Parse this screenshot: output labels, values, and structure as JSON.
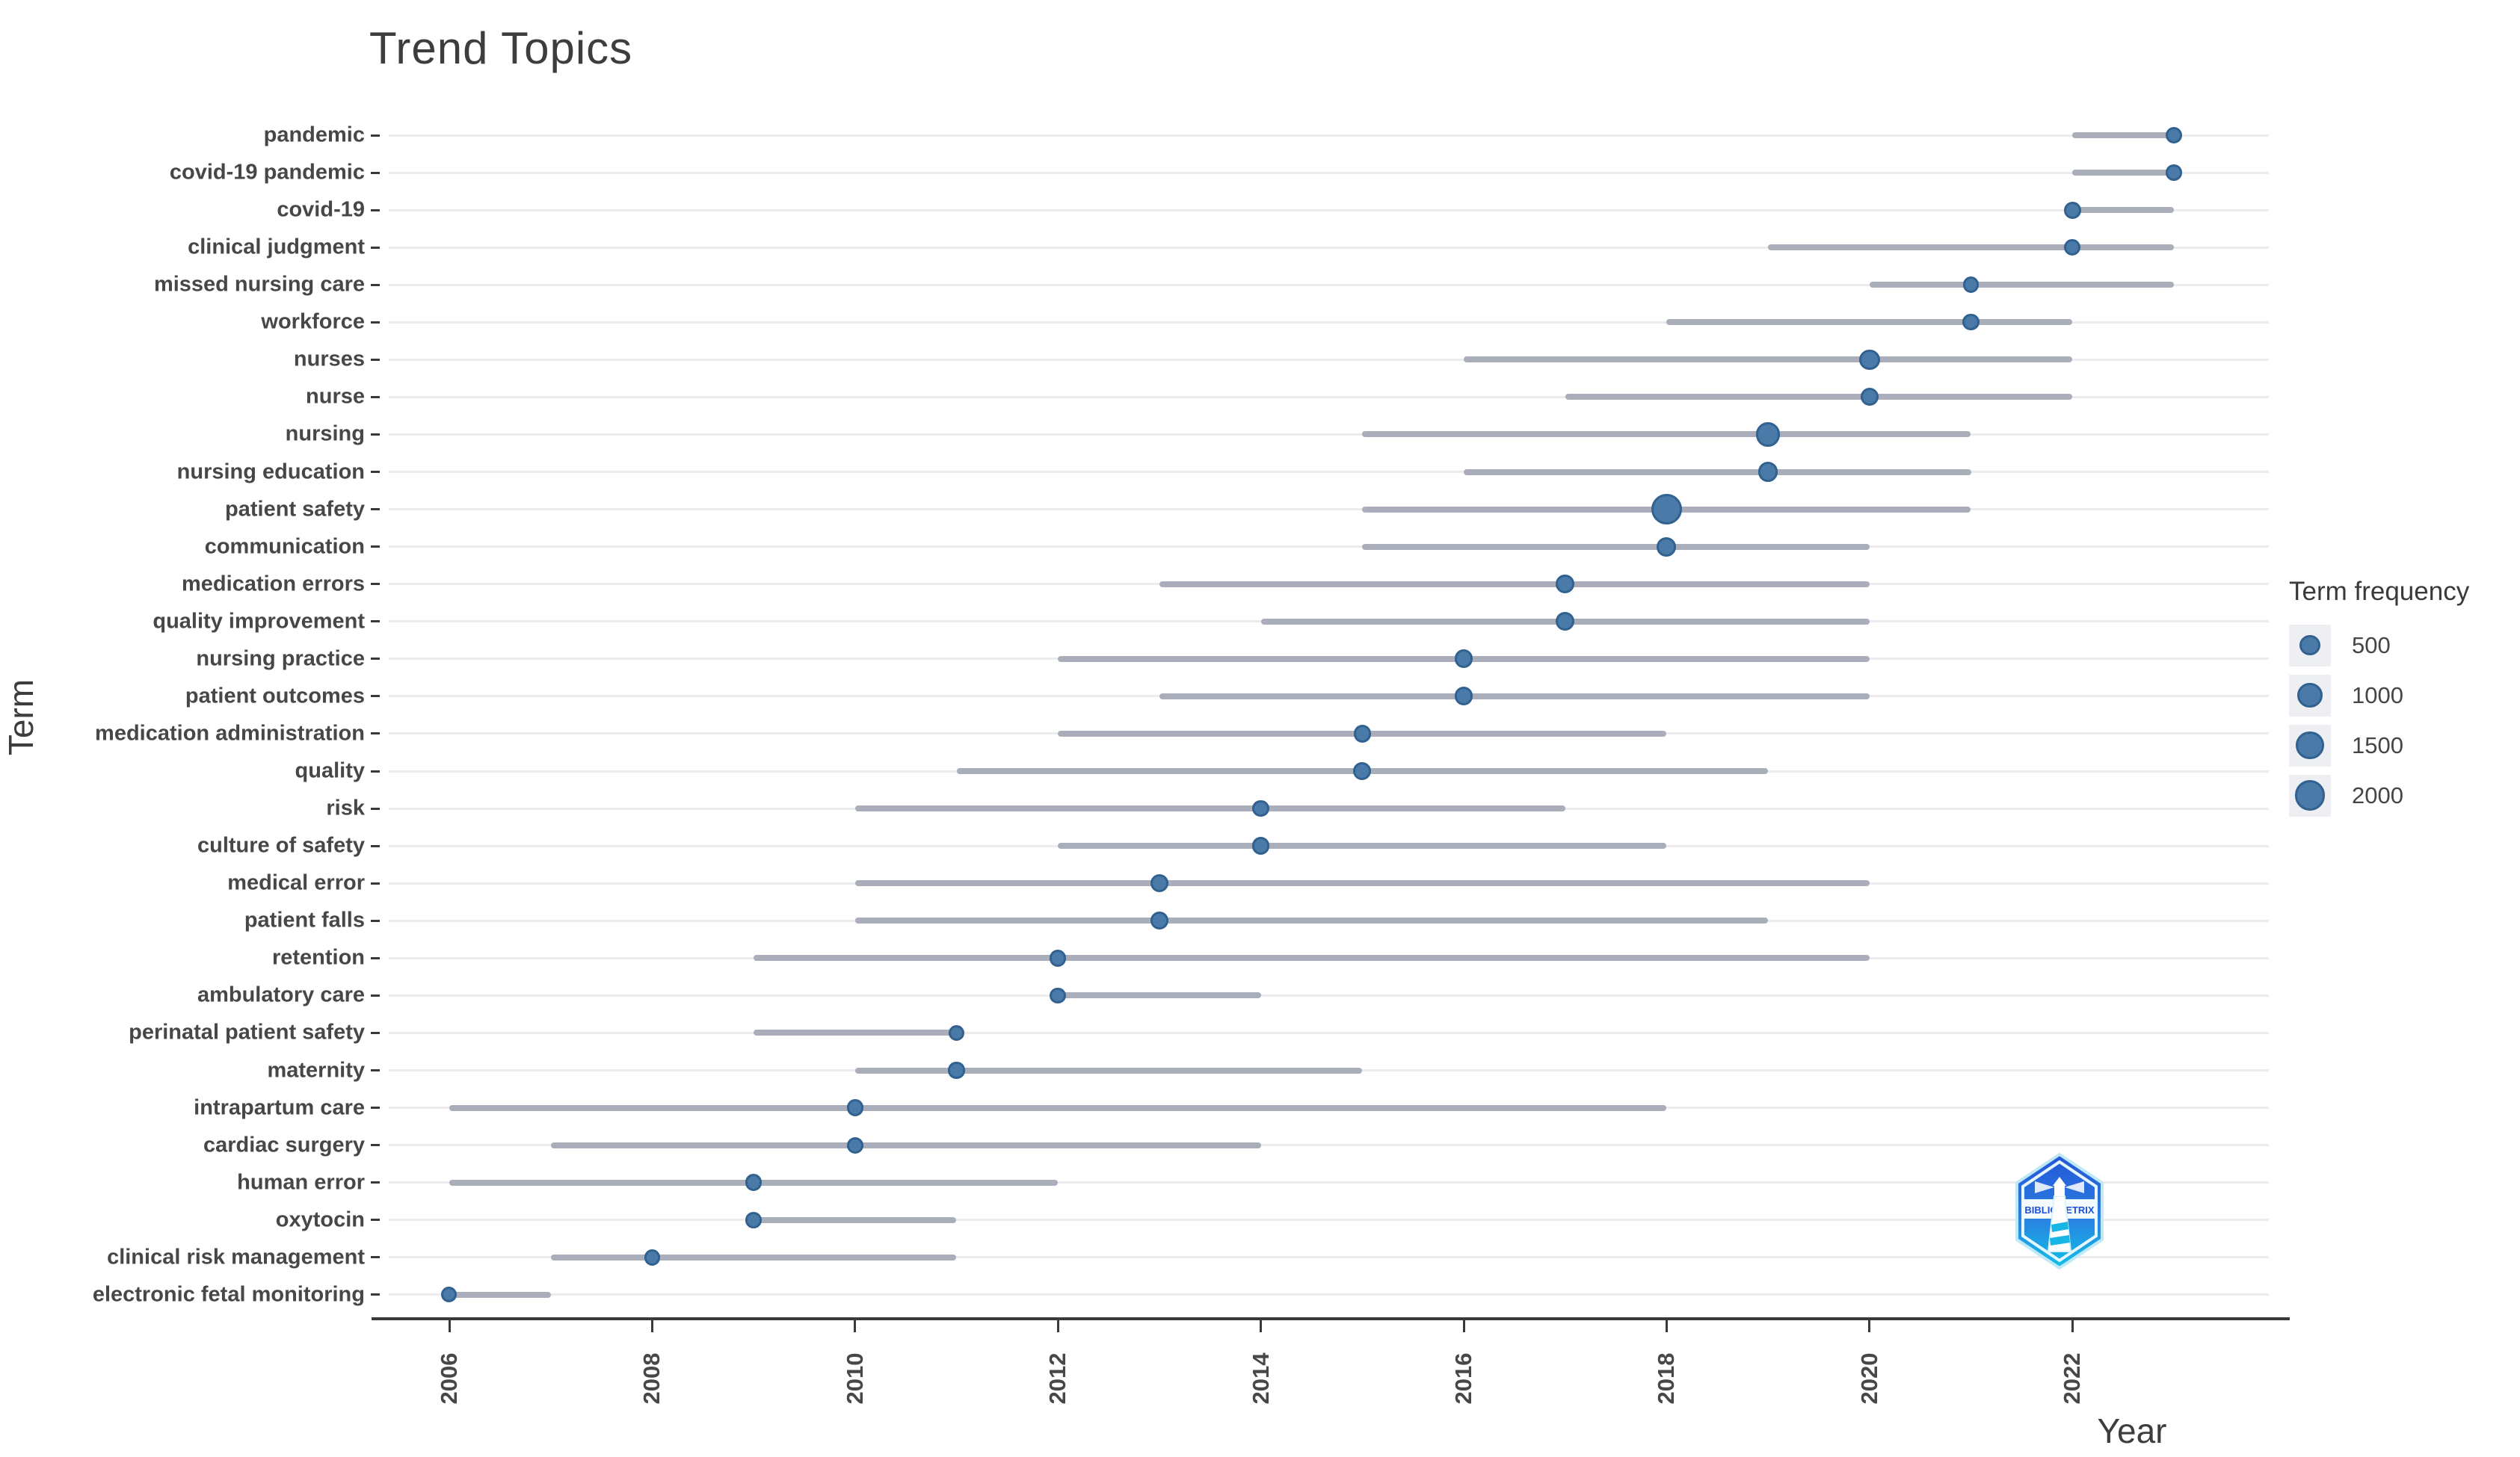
{
  "title": "Trend Topics",
  "x_axis": {
    "label": "Year",
    "ticks": [
      2006,
      2008,
      2010,
      2012,
      2014,
      2016,
      2018,
      2020,
      2022
    ]
  },
  "y_axis": {
    "label": "Term"
  },
  "legend": {
    "title": "Term frequency",
    "sizes": [
      500,
      1000,
      1500,
      2000
    ]
  },
  "logo": {
    "text": "BIBLIOMETRIX"
  },
  "colors": {
    "dot_fill": "#4a7aa8",
    "dot_stroke": "#31618f",
    "segment": "#a9aeba",
    "gridline": "#ececef",
    "axis": "#3a3a3a",
    "logo_blue": "#2456d8",
    "logo_cyan": "#12c0e8"
  },
  "chart_data": {
    "type": "scatter",
    "title": "Trend Topics",
    "xlabel": "Year",
    "ylabel": "Term",
    "legend_title": "Term frequency",
    "legend_sizes": [
      500,
      1000,
      1500,
      2000
    ],
    "x_range": [
      2006,
      2023
    ],
    "grid": true,
    "note": "Each term has a horizontal line from first-quartile year to third-quartile year and a dot at the median year sized by term frequency",
    "terms": [
      {
        "term": "pandemic",
        "year_q1": 2022,
        "year_med": 2023,
        "year_q3": 2023,
        "freq": 150
      },
      {
        "term": "covid-19 pandemic",
        "year_q1": 2022,
        "year_med": 2023,
        "year_q3": 2023,
        "freq": 130
      },
      {
        "term": "covid-19",
        "year_q1": 2022,
        "year_med": 2022,
        "year_q3": 2023,
        "freq": 200
      },
      {
        "term": "clinical judgment",
        "year_q1": 2019,
        "year_med": 2022,
        "year_q3": 2023,
        "freq": 150
      },
      {
        "term": "missed nursing care",
        "year_q1": 2020,
        "year_med": 2021,
        "year_q3": 2023,
        "freq": 130
      },
      {
        "term": "workforce",
        "year_q1": 2018,
        "year_med": 2021,
        "year_q3": 2022,
        "freq": 160
      },
      {
        "term": "nurses",
        "year_q1": 2016,
        "year_med": 2020,
        "year_q3": 2022,
        "freq": 480
      },
      {
        "term": "nurse",
        "year_q1": 2017,
        "year_med": 2020,
        "year_q3": 2022,
        "freq": 250
      },
      {
        "term": "nursing",
        "year_q1": 2015,
        "year_med": 2019,
        "year_q3": 2021,
        "freq": 900
      },
      {
        "term": "nursing education",
        "year_q1": 2016,
        "year_med": 2019,
        "year_q3": 2021,
        "freq": 400
      },
      {
        "term": "patient safety",
        "year_q1": 2015,
        "year_med": 2018,
        "year_q3": 2021,
        "freq": 2100
      },
      {
        "term": "communication",
        "year_q1": 2015,
        "year_med": 2018,
        "year_q3": 2020,
        "freq": 350
      },
      {
        "term": "medication errors",
        "year_q1": 2013,
        "year_med": 2017,
        "year_q3": 2020,
        "freq": 280
      },
      {
        "term": "quality improvement",
        "year_q1": 2014,
        "year_med": 2017,
        "year_q3": 2020,
        "freq": 300
      },
      {
        "term": "nursing practice",
        "year_q1": 2012,
        "year_med": 2016,
        "year_q3": 2020,
        "freq": 300
      },
      {
        "term": "patient outcomes",
        "year_q1": 2013,
        "year_med": 2016,
        "year_q3": 2020,
        "freq": 300
      },
      {
        "term": "medication administration",
        "year_q1": 2012,
        "year_med": 2015,
        "year_q3": 2018,
        "freq": 200
      },
      {
        "term": "quality",
        "year_q1": 2011,
        "year_med": 2015,
        "year_q3": 2019,
        "freq": 250
      },
      {
        "term": "risk",
        "year_q1": 2010,
        "year_med": 2014,
        "year_q3": 2017,
        "freq": 180
      },
      {
        "term": "culture of safety",
        "year_q1": 2012,
        "year_med": 2014,
        "year_q3": 2018,
        "freq": 220
      },
      {
        "term": "medical error",
        "year_q1": 2010,
        "year_med": 2013,
        "year_q3": 2020,
        "freq": 260
      },
      {
        "term": "patient falls",
        "year_q1": 2010,
        "year_med": 2013,
        "year_q3": 2019,
        "freq": 230
      },
      {
        "term": "retention",
        "year_q1": 2009,
        "year_med": 2012,
        "year_q3": 2020,
        "freq": 170
      },
      {
        "term": "ambulatory care",
        "year_q1": 2012,
        "year_med": 2012,
        "year_q3": 2014,
        "freq": 130
      },
      {
        "term": "perinatal patient safety",
        "year_q1": 2009,
        "year_med": 2011,
        "year_q3": 2011,
        "freq": 140
      },
      {
        "term": "maternity",
        "year_q1": 2010,
        "year_med": 2011,
        "year_q3": 2015,
        "freq": 150
      },
      {
        "term": "intrapartum care",
        "year_q1": 2006,
        "year_med": 2010,
        "year_q3": 2018,
        "freq": 160
      },
      {
        "term": "cardiac surgery",
        "year_q1": 2007,
        "year_med": 2010,
        "year_q3": 2014,
        "freq": 140
      },
      {
        "term": "human error",
        "year_q1": 2006,
        "year_med": 2009,
        "year_q3": 2012,
        "freq": 170
      },
      {
        "term": "oxytocin",
        "year_q1": 2009,
        "year_med": 2009,
        "year_q3": 2011,
        "freq": 130
      },
      {
        "term": "clinical risk management",
        "year_q1": 2007,
        "year_med": 2008,
        "year_q3": 2011,
        "freq": 140
      },
      {
        "term": "electronic fetal monitoring",
        "year_q1": 2006,
        "year_med": 2006,
        "year_q3": 2007,
        "freq": 110
      }
    ]
  }
}
